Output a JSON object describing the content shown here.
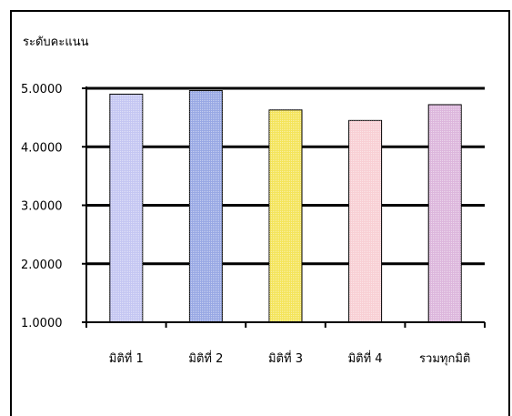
{
  "chart_data": {
    "type": "bar",
    "title": "",
    "ylabel": "ระดับคะแนน",
    "xlabel": "",
    "categories": [
      "มิติที่ 1",
      "มิติที่ 2",
      "มิติที่ 3",
      "มิติที่ 4",
      "รวมทุกมิติ"
    ],
    "values": [
      4.9,
      4.96,
      4.63,
      4.45,
      4.72
    ],
    "ylim": [
      1.0,
      5.0
    ],
    "yticks": [
      "1.0000",
      "2.0000",
      "3.0000",
      "4.0000",
      "5.0000"
    ],
    "grid": true,
    "legend": "none",
    "colors": [
      "#c4c6f2",
      "#98a8e4",
      "#f4e45a",
      "#f8cfd4",
      "#dcb6dc"
    ]
  }
}
